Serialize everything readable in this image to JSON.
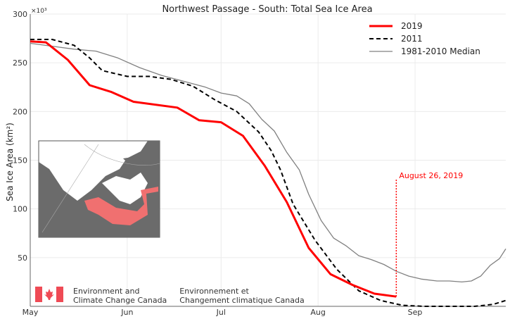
{
  "chart_data": {
    "type": "line",
    "title": "Northwest Passage - South: Total Sea Ice Area",
    "ylabel": "Sea Ice Area (km²)",
    "y_multiplier": "×10³",
    "xlabel": "",
    "ylim": [
      0,
      300
    ],
    "xlim": [
      "05-01",
      "09-30"
    ],
    "yticks": [
      50,
      100,
      150,
      200,
      250,
      300
    ],
    "xticks": [
      {
        "date": "05-01",
        "label": "May"
      },
      {
        "date": "06-01",
        "label": "Jun"
      },
      {
        "date": "07-01",
        "label": "Jul"
      },
      {
        "date": "08-01",
        "label": "Aug"
      },
      {
        "date": "09-01",
        "label": "Sep"
      }
    ],
    "grid": true,
    "legend_position": "top-right",
    "series": [
      {
        "name": "2019",
        "color": "#ff0000",
        "style": "solid",
        "points": [
          [
            "05-01",
            272
          ],
          [
            "05-06",
            271
          ],
          [
            "05-13",
            253
          ],
          [
            "05-20",
            227
          ],
          [
            "05-27",
            220
          ],
          [
            "06-03",
            210
          ],
          [
            "06-17",
            204
          ],
          [
            "06-24",
            191
          ],
          [
            "07-01",
            189
          ],
          [
            "07-08",
            175
          ],
          [
            "07-15",
            144
          ],
          [
            "07-22",
            107
          ],
          [
            "07-29",
            60
          ],
          [
            "08-05",
            33
          ],
          [
            "08-12",
            22
          ],
          [
            "08-19",
            13
          ],
          [
            "08-26",
            10
          ]
        ]
      },
      {
        "name": "2011",
        "color": "#000000",
        "style": "dashed",
        "points": [
          [
            "05-01",
            274
          ],
          [
            "05-08",
            274
          ],
          [
            "05-15",
            268
          ],
          [
            "05-20",
            255
          ],
          [
            "05-24",
            242
          ],
          [
            "06-01",
            236
          ],
          [
            "06-08",
            236
          ],
          [
            "06-15",
            233
          ],
          [
            "06-22",
            226
          ],
          [
            "06-29",
            212
          ],
          [
            "07-06",
            200
          ],
          [
            "07-13",
            179
          ],
          [
            "07-17",
            160
          ],
          [
            "07-20",
            140
          ],
          [
            "07-24",
            105
          ],
          [
            "07-31",
            68
          ],
          [
            "08-07",
            38
          ],
          [
            "08-14",
            16
          ],
          [
            "08-21",
            6
          ],
          [
            "08-28",
            1
          ],
          [
            "09-04",
            0
          ],
          [
            "09-20",
            0
          ],
          [
            "09-26",
            2
          ],
          [
            "09-30",
            6
          ]
        ]
      },
      {
        "name": "1981-2010 Median",
        "color": "#808080",
        "style": "solid",
        "points": [
          [
            "05-01",
            270
          ],
          [
            "05-08",
            267
          ],
          [
            "05-15",
            264
          ],
          [
            "05-22",
            262
          ],
          [
            "05-29",
            255
          ],
          [
            "06-05",
            245
          ],
          [
            "06-12",
            237
          ],
          [
            "06-19",
            231
          ],
          [
            "06-26",
            225
          ],
          [
            "07-01",
            219
          ],
          [
            "07-06",
            216
          ],
          [
            "07-10",
            208
          ],
          [
            "07-14",
            192
          ],
          [
            "07-18",
            180
          ],
          [
            "07-22",
            158
          ],
          [
            "07-26",
            140
          ],
          [
            "07-29",
            115
          ],
          [
            "08-02",
            88
          ],
          [
            "08-06",
            70
          ],
          [
            "08-10",
            62
          ],
          [
            "08-14",
            52
          ],
          [
            "08-18",
            48
          ],
          [
            "08-22",
            43
          ],
          [
            "08-26",
            36
          ],
          [
            "08-30",
            31
          ],
          [
            "09-03",
            28
          ],
          [
            "09-08",
            26
          ],
          [
            "09-12",
            26
          ],
          [
            "09-16",
            25
          ],
          [
            "09-19",
            26
          ],
          [
            "09-22",
            31
          ],
          [
            "09-25",
            42
          ],
          [
            "09-28",
            49
          ],
          [
            "09-30",
            59
          ]
        ]
      }
    ],
    "annotation": {
      "date": "08-26",
      "label": "August 26, 2019",
      "color": "#ff0000",
      "top_value": 130
    }
  },
  "logo": {
    "en_line1": "Environment and",
    "en_line2": "Climate Change Canada",
    "fr_line1": "Environnement et",
    "fr_line2": "Changement climatique Canada"
  }
}
